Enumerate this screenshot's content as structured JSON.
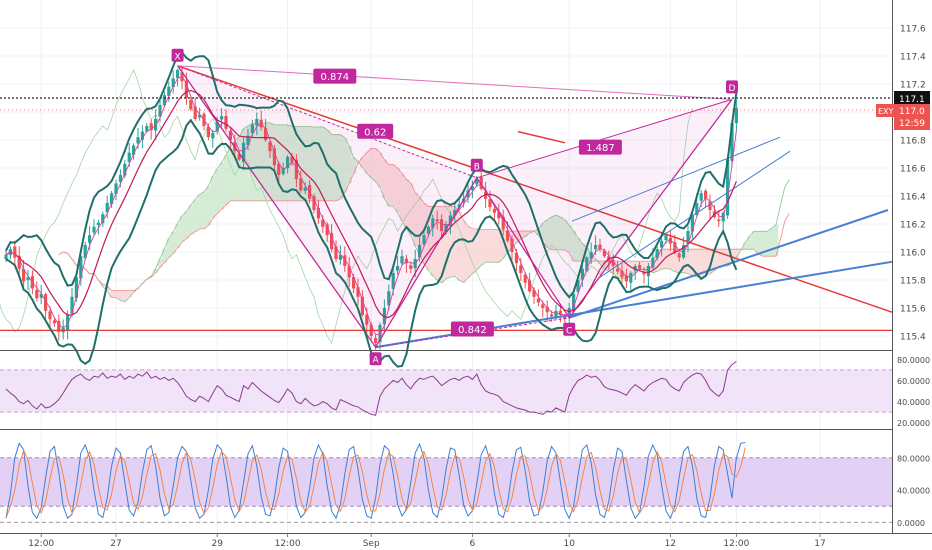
{
  "chart_data": [
    {
      "type": "candlestick",
      "symbol": "EXY",
      "price_axis": {
        "range": [
          115.3,
          117.8
        ],
        "ticks": [
          "117.6",
          "117.4",
          "117.2",
          "117.0",
          "116.8",
          "116.6",
          "116.4",
          "116.2",
          "116.0",
          "115.8",
          "115.6",
          "115.4"
        ],
        "tick_values": [
          117.6,
          117.4,
          117.2,
          117.0,
          116.8,
          116.6,
          116.4,
          116.2,
          116.0,
          115.8,
          115.6,
          115.4
        ]
      },
      "time_axis": {
        "labels": [
          "12:00",
          "27",
          "29",
          "12:00",
          "Sep",
          "6",
          "10",
          "12",
          "12:00",
          "17"
        ]
      },
      "price_labels": {
        "crosshair": {
          "text": "117.1",
          "value": 117.1
        },
        "last": {
          "text": "117.0",
          "value": 117.0,
          "symbol": "EXY",
          "countdown": "12:59"
        }
      },
      "harmonic_pattern": {
        "points": [
          {
            "label": "X",
            "bar": 39,
            "price": 117.33
          },
          {
            "label": "A",
            "bar": 84,
            "price": 115.32
          },
          {
            "label": "B",
            "bar": 107,
            "price": 116.53
          },
          {
            "label": "C",
            "bar": 128,
            "price": 115.53
          },
          {
            "label": "D",
            "bar": 165,
            "price": 117.09
          }
        ],
        "ratios": [
          {
            "text": "0.874"
          },
          {
            "text": "0.62"
          },
          {
            "text": "1.487"
          },
          {
            "text": "0.842"
          }
        ]
      },
      "horizontal_levels": [
        115.44
      ],
      "closes": [
        115.98,
        116.02,
        115.96,
        115.88,
        115.79,
        115.82,
        115.74,
        115.67,
        115.7,
        115.58,
        115.52,
        115.49,
        115.43,
        115.46,
        115.55,
        115.68,
        115.82,
        115.97,
        116.05,
        116.12,
        116.18,
        116.21,
        116.27,
        116.35,
        116.42,
        116.49,
        116.55,
        116.63,
        116.71,
        116.76,
        116.82,
        116.86,
        116.9,
        116.87,
        116.95,
        117.05,
        117.12,
        117.18,
        117.24,
        117.3,
        117.22,
        117.1,
        117.02,
        116.95,
        116.98,
        116.9,
        116.82,
        116.85,
        116.93,
        116.97,
        116.88,
        116.8,
        116.72,
        116.66,
        116.78,
        116.83,
        116.91,
        116.95,
        116.89,
        116.8,
        116.72,
        116.62,
        116.55,
        116.6,
        116.68,
        116.64,
        116.52,
        116.44,
        116.46,
        116.38,
        116.3,
        116.24,
        116.18,
        116.12,
        116.02,
        115.95,
        115.98,
        115.9,
        115.82,
        115.74,
        115.68,
        115.55,
        115.48,
        115.4,
        115.35,
        115.48,
        115.6,
        115.72,
        115.85,
        115.9,
        115.97,
        115.92,
        115.88,
        115.95,
        116.05,
        116.12,
        116.18,
        116.24,
        116.22,
        116.15,
        116.2,
        116.26,
        116.3,
        116.34,
        116.38,
        116.44,
        116.47,
        116.52,
        116.45,
        116.38,
        116.32,
        116.28,
        116.24,
        116.16,
        116.08,
        116.0,
        115.92,
        115.85,
        115.78,
        115.72,
        115.68,
        115.64,
        115.6,
        115.57,
        115.54,
        115.58,
        115.55,
        115.52,
        115.6,
        115.7,
        115.8,
        115.88,
        115.96,
        116.0,
        116.05,
        116.02,
        115.97,
        115.93,
        115.9,
        115.86,
        115.82,
        115.79,
        115.85,
        115.9,
        115.88,
        115.84,
        115.9,
        115.96,
        116.02,
        116.08,
        116.12,
        116.06,
        116.0,
        115.96,
        116.05,
        116.15,
        116.26,
        116.35,
        116.42,
        116.38,
        116.3,
        116.25,
        116.22,
        116.28,
        116.66,
        116.92,
        117.03
      ]
    },
    {
      "type": "line",
      "name": "RSI",
      "y_axis": {
        "range": [
          15,
          85
        ],
        "ticks": [
          "80.0000",
          "60.0000",
          "40.0000",
          "20.0000"
        ],
        "tick_values": [
          80,
          60,
          40,
          20
        ]
      },
      "bands": [
        70,
        30
      ],
      "values": [
        52,
        48,
        45,
        40,
        38,
        41,
        36,
        33,
        38,
        34,
        35,
        38,
        42,
        48,
        55,
        61,
        64,
        66,
        62,
        60,
        64,
        63,
        67,
        62,
        64,
        63,
        66,
        61,
        64,
        62,
        66,
        64,
        68,
        62,
        64,
        61,
        63,
        60,
        62,
        58,
        52,
        45,
        42,
        40,
        45,
        43,
        40,
        48,
        55,
        52,
        46,
        44,
        42,
        40,
        55,
        52,
        58,
        54,
        50,
        47,
        44,
        41,
        39,
        45,
        52,
        48,
        40,
        38,
        43,
        39,
        36,
        37,
        40,
        38,
        34,
        32,
        42,
        40,
        38,
        36,
        35,
        32,
        30,
        28,
        27,
        45,
        52,
        56,
        60,
        58,
        62,
        56,
        52,
        58,
        62,
        61,
        63,
        64,
        60,
        55,
        58,
        61,
        62,
        60,
        63,
        64,
        61,
        66,
        56,
        50,
        48,
        47,
        45,
        40,
        38,
        36,
        34,
        33,
        32,
        30,
        30,
        29,
        28,
        31,
        30,
        34,
        32,
        30,
        46,
        54,
        60,
        62,
        65,
        63,
        64,
        60,
        54,
        52,
        51,
        50,
        48,
        46,
        52,
        56,
        53,
        50,
        55,
        58,
        60,
        62,
        61,
        55,
        52,
        50,
        58,
        62,
        65,
        67,
        66,
        60,
        52,
        48,
        45,
        50,
        70,
        75,
        78
      ]
    },
    {
      "type": "line",
      "name": "Stochastic RSI",
      "y_axis": {
        "range": [
          -12,
          112
        ],
        "ticks": [
          "80.0000",
          "40.0000",
          "0.0000"
        ],
        "tick_values": [
          80,
          40,
          0
        ]
      },
      "bands": [
        80,
        20
      ],
      "values": [
        5,
        35,
        80,
        98,
        90,
        45,
        12,
        5,
        18,
        55,
        88,
        94,
        62,
        20,
        5,
        10,
        46,
        86,
        96,
        80,
        40,
        10,
        6,
        30,
        70,
        92,
        86,
        50,
        15,
        8,
        25,
        62,
        90,
        95,
        70,
        30,
        8,
        12,
        45,
        80,
        94,
        88,
        52,
        18,
        5,
        10,
        40,
        78,
        96,
        90,
        58,
        20,
        6,
        15,
        50,
        85,
        95,
        70,
        32,
        10,
        8,
        30,
        68,
        92,
        88,
        55,
        20,
        6,
        12,
        42,
        80,
        96,
        85,
        45,
        14,
        5,
        22,
        60,
        90,
        94,
        66,
        28,
        8,
        5,
        30,
        72,
        95,
        90,
        60,
        22,
        8,
        16,
        50,
        86,
        97,
        80,
        40,
        12,
        6,
        28,
        66,
        92,
        90,
        58,
        22,
        8,
        14,
        48,
        84,
        95,
        76,
        36,
        10,
        6,
        24,
        62,
        90,
        93,
        64,
        26,
        8,
        10,
        38,
        76,
        94,
        86,
        50,
        16,
        5,
        20,
        58,
        90,
        96,
        74,
        34,
        10,
        6,
        26,
        64,
        92,
        88,
        52,
        18,
        5,
        12,
        44,
        82,
        96,
        84,
        46,
        14,
        5,
        20,
        56,
        88,
        94,
        70,
        30,
        8,
        6,
        30,
        70,
        94,
        90,
        60,
        30,
        80,
        98,
        99
      ]
    }
  ]
}
